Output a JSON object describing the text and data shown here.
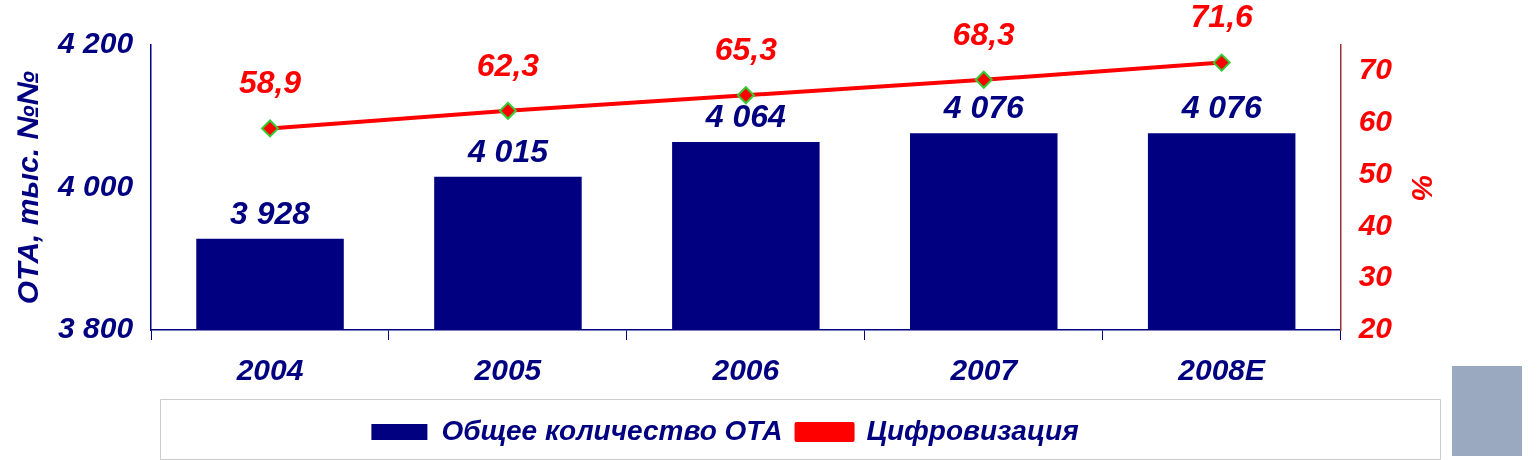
{
  "chart_data": {
    "type": "bar",
    "ylabel": "ОТА, тыс. №№",
    "y2label": "%",
    "categories": [
      "2004",
      "2005",
      "2006",
      "2007",
      "2008E"
    ],
    "series": [
      {
        "name": "Общее количество ОТА",
        "color": "#000080",
        "values": [
          3928,
          4015,
          4064,
          4076,
          4076
        ],
        "value_labels": [
          "3 928",
          "4 015",
          "4 064",
          "4 076",
          "4 076"
        ]
      },
      {
        "name": "Цифровизация",
        "type": "line",
        "axis": "y2",
        "color": "#ff0000",
        "marker": "diamond",
        "values": [
          58.9,
          62.3,
          65.3,
          68.3,
          71.6
        ],
        "value_labels": [
          "58,9",
          "62,3",
          "65,3",
          "68,3",
          "71,6"
        ]
      }
    ],
    "ylim": [
      3800,
      4200
    ],
    "yticks": [
      {
        "value": 3800,
        "label": "3 800"
      },
      {
        "value": 4000,
        "label": "4 000"
      },
      {
        "value": 4200,
        "label": "4 200"
      }
    ],
    "y2lim": [
      20,
      75
    ],
    "y2ticks": [
      20,
      30,
      40,
      50,
      60,
      70
    ],
    "grid": false,
    "legend": "bottom"
  }
}
